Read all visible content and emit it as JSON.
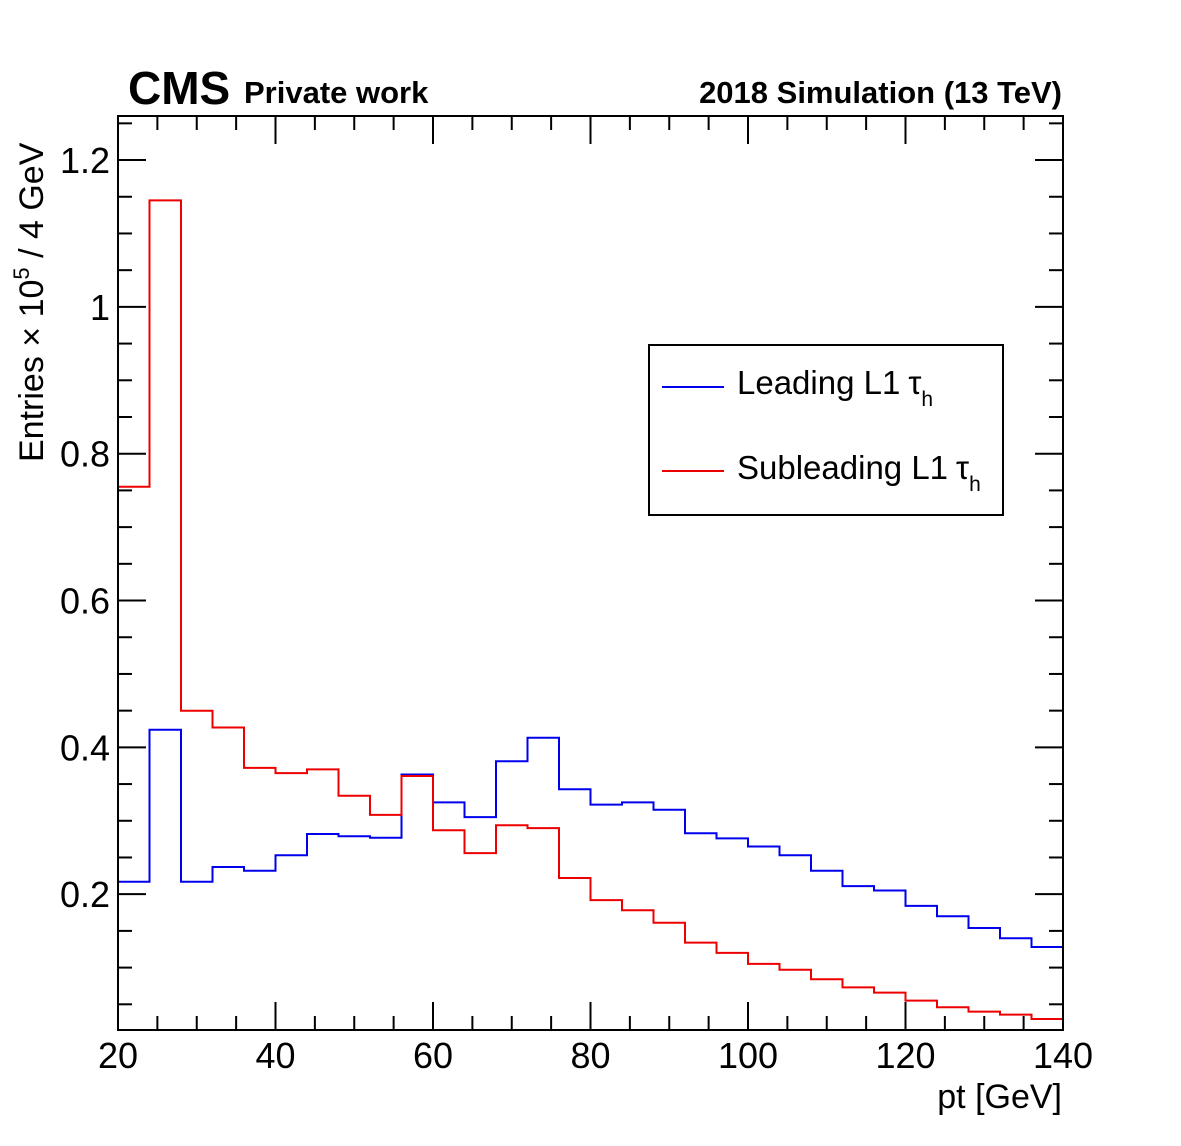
{
  "header": {
    "experiment": "CMS",
    "tag": "Private work",
    "run_info": "2018 Simulation (13 TeV)"
  },
  "chart_data": {
    "type": "line",
    "drawstyle": "step",
    "x_label": "pt [GeV]",
    "y_label": {
      "prefix": "Entries × 10",
      "exponent": "5",
      "suffix": " / 4 GeV"
    },
    "xlim": [
      20,
      140
    ],
    "ylim": [
      0.015,
      1.26
    ],
    "x_ticks": [
      20,
      40,
      60,
      80,
      100,
      120,
      140
    ],
    "y_ticks": [
      0.2,
      0.4,
      0.6,
      0.8,
      1,
      1.2
    ],
    "y_tick_labels": [
      "0.2",
      "0.4",
      "0.6",
      "0.8",
      "1",
      "1.2"
    ],
    "bin_edges": [
      20,
      24,
      28,
      32,
      36,
      40,
      44,
      48,
      52,
      56,
      60,
      64,
      68,
      72,
      76,
      80,
      84,
      88,
      92,
      96,
      100,
      104,
      108,
      112,
      116,
      120,
      124,
      128,
      132,
      136,
      140
    ],
    "legend_position": "top-right",
    "series": [
      {
        "name": "Leading L1",
        "tau_symbol": "τ",
        "tau_subscript": "h",
        "color": "#0000ee",
        "values": [
          0.217,
          0.424,
          0.217,
          0.237,
          0.232,
          0.253,
          0.282,
          0.279,
          0.277,
          0.363,
          0.325,
          0.305,
          0.381,
          0.413,
          0.343,
          0.322,
          0.325,
          0.315,
          0.283,
          0.276,
          0.265,
          0.253,
          0.232,
          0.211,
          0.205,
          0.184,
          0.17,
          0.154,
          0.14,
          0.128
        ]
      },
      {
        "name": "Subleading L1",
        "tau_symbol": "τ",
        "tau_subscript": "h",
        "color": "#ee0000",
        "values": [
          0.755,
          1.145,
          0.45,
          0.427,
          0.372,
          0.365,
          0.37,
          0.334,
          0.308,
          0.361,
          0.287,
          0.256,
          0.294,
          0.29,
          0.222,
          0.192,
          0.178,
          0.161,
          0.134,
          0.12,
          0.105,
          0.097,
          0.084,
          0.073,
          0.066,
          0.055,
          0.046,
          0.04,
          0.036,
          0.03
        ]
      }
    ]
  }
}
